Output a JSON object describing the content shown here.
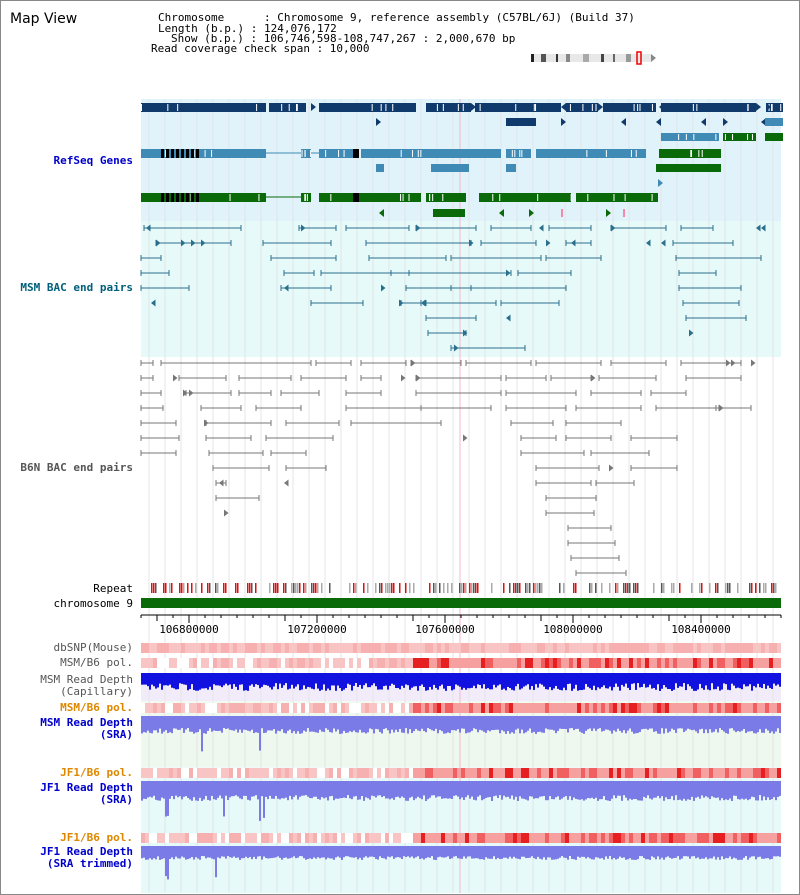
{
  "header": {
    "title": "Map View",
    "chromosome": "Chromosome      : Chromosome 9, reference assembly (C57BL/6J) (Build 37)",
    "length": "Length (b.p.) : 124,076,172",
    "show": "Show (b.p.) : 106,746,598-108,747,267 : 2,000,670 bp",
    "coverage": "Read coverage check span : 10,000"
  },
  "tracks": {
    "refseq": "RefSeq Genes",
    "msm_bac": "MSM BAC end pairs",
    "b6n_bac": "B6N BAC end pairs",
    "repeat": "Repeat",
    "chromosome": "chromosome 9",
    "dbsnp": "dbSNP(Mouse)",
    "msm_pol": "MSM/B6 pol.",
    "msm_depth_cap_1": "MSM Read Depth",
    "msm_depth_cap_2": "(Capillary)",
    "msm_pol2": "MSM/B6 pol.",
    "msm_sra_1": "MSM Read Depth",
    "msm_sra_2": "(SRA)",
    "jf1_pol": "JF1/B6 pol.",
    "jf1_sra_1": "JF1 Read Depth",
    "jf1_sra_2": "(SRA)",
    "jf1_pol2": "JF1/B6 pol.",
    "jf1_trim_1": "JF1 Read Depth",
    "jf1_trim_2": "(SRA trimmed)"
  },
  "axis": {
    "ticks": [
      "106800000",
      "107200000",
      "107600000",
      "108000000",
      "108400000"
    ]
  },
  "colors": {
    "refseq_bg": "#e0f2fa",
    "msm_bg": "#e6fafa",
    "gene_dark": "#0f3a6b",
    "gene_mid": "#3f8bb5",
    "gene_green": "#0a6a0a",
    "msm_line": "#2a6f8c",
    "b6n_line": "#777777",
    "chrom_bar": "#0a6a0a",
    "depth_dark": "#1212e0",
    "depth_light": "#7b7be8",
    "label_blue": "#0000cc",
    "label_teal": "#005f7a",
    "label_grey": "#555555",
    "label_orange": "#dd8800"
  }
}
